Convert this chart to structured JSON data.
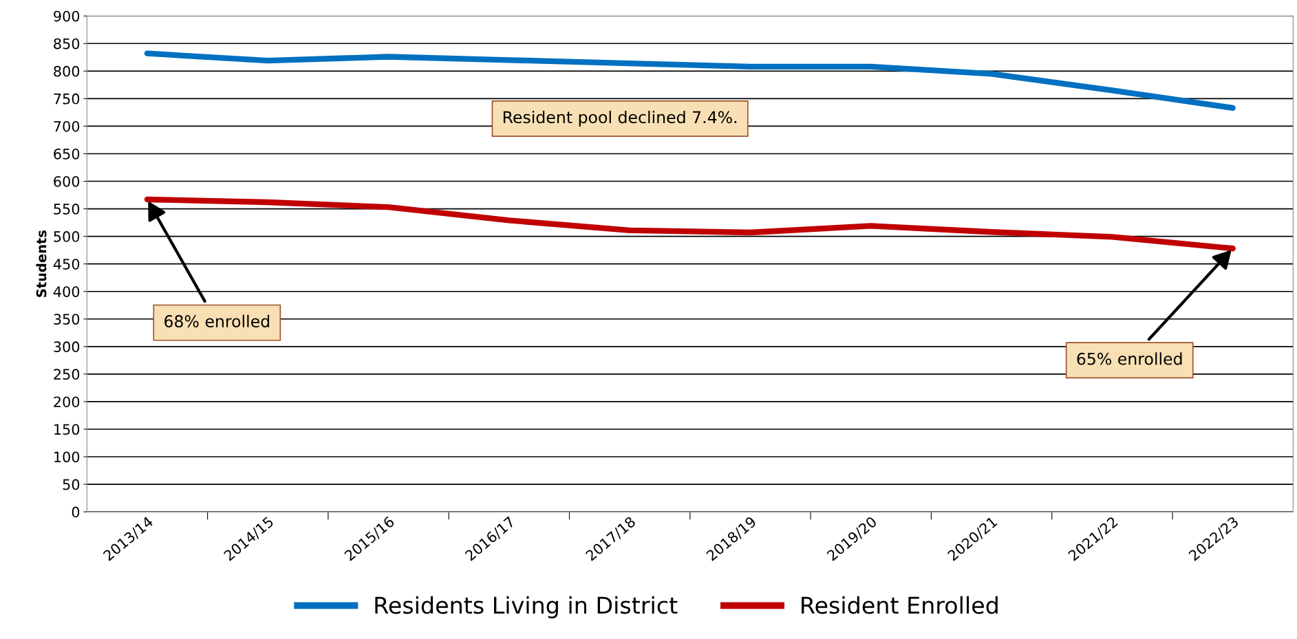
{
  "chart_data": {
    "type": "line",
    "categories": [
      "2013/14",
      "2014/15",
      "2015/16",
      "2016/17",
      "2017/18",
      "2018/19",
      "2019/20",
      "2020/21",
      "2021/22",
      "2022/23"
    ],
    "ylabel": "Students",
    "ylim": [
      0,
      900
    ],
    "yticks": [
      0,
      50,
      100,
      150,
      200,
      250,
      300,
      350,
      400,
      450,
      500,
      550,
      600,
      650,
      700,
      750,
      800,
      850,
      900
    ],
    "grid": "y",
    "legend": "bottom",
    "marker": "none",
    "line_style": "solid",
    "series": [
      {
        "name": "Residents Living in District",
        "color": "#0070c0",
        "values": [
          832,
          819,
          826,
          820,
          814,
          808,
          808,
          795,
          765,
          733
        ]
      },
      {
        "name": "Resident Enrolled",
        "color": "#c00000",
        "values": [
          567,
          562,
          553,
          529,
          511,
          507,
          519,
          508,
          499,
          478
        ]
      }
    ],
    "annotations": [
      "Resident pool declined 7.4%.",
      {
        "text": "68% enrolled",
        "x": "2013/14",
        "y": 567
      },
      {
        "text": "65% enrolled",
        "x": "2022/23",
        "y": 478
      }
    ]
  }
}
